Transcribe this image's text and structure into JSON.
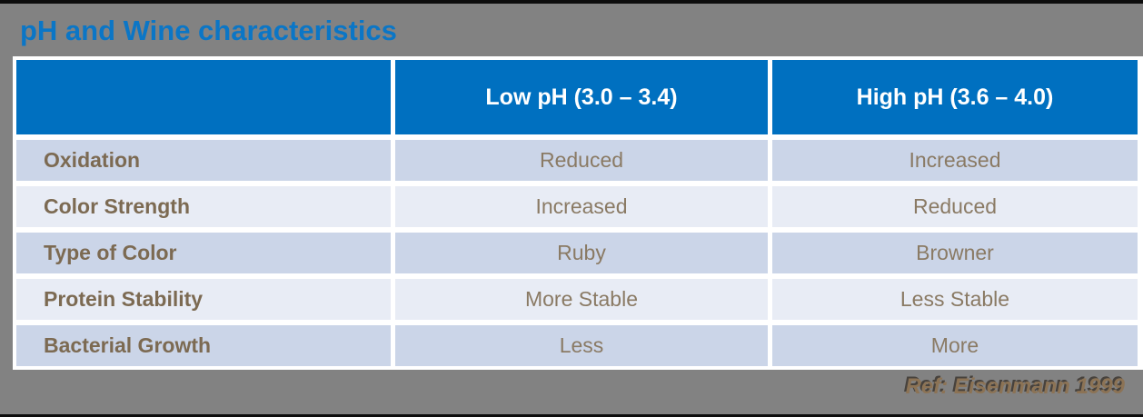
{
  "title": "pH and Wine characteristics",
  "table": {
    "columns": [
      "",
      "Low pH (3.0 – 3.4)",
      "High pH (3.6 – 4.0)"
    ],
    "rows": [
      {
        "label": "Oxidation",
        "low": "Reduced",
        "high": "Increased"
      },
      {
        "label": "Color Strength",
        "low": "Increased",
        "high": "Reduced"
      },
      {
        "label": "Type of Color",
        "low": "Ruby",
        "high": "Browner"
      },
      {
        "label": "Protein Stability",
        "low": "More Stable",
        "high": "Less Stable"
      },
      {
        "label": "Bacterial Growth",
        "low": "Less",
        "high": "More"
      }
    ]
  },
  "footer": {
    "reference": "Ref: Eisenmann 1999"
  },
  "colors": {
    "background_gray": "#828282",
    "edge_bar_black": "#0d0d0d",
    "title_blue": "#0b76c6",
    "header_blue": "#0070c0",
    "row_dark_blue": "#cbd5e8",
    "row_light_blue": "#e8ecf5",
    "label_brown": "#7c6a52",
    "value_brown": "#8a7a64",
    "reference_tan": "#8c7355",
    "table_border_white": "#ffffff"
  }
}
